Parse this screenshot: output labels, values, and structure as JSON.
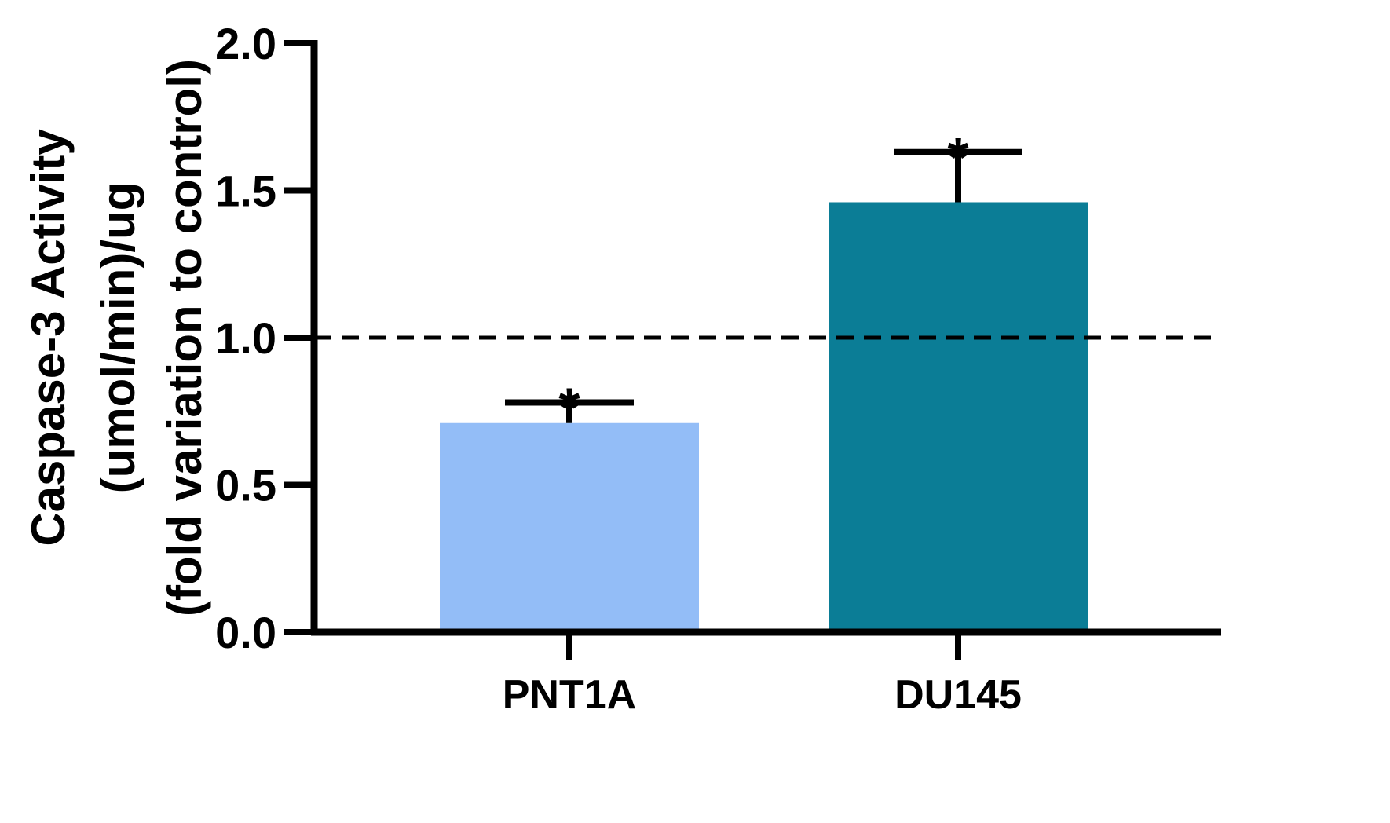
{
  "chart_data": {
    "type": "bar",
    "categories": [
      "PNT1A",
      "DU145"
    ],
    "values": [
      0.71,
      1.46
    ],
    "error_upper": [
      0.78,
      1.63
    ],
    "significance": [
      "*",
      "*"
    ],
    "colors": [
      "#93bdf7",
      "#0b7d96"
    ],
    "ylabel_lines": [
      "Caspase-3 Activity",
      "(umol/min)/ug",
      "(fold variation to control)"
    ],
    "ylim": [
      0,
      2
    ],
    "yticks": [
      0.0,
      0.5,
      1.0,
      1.5,
      2.0
    ],
    "ytick_labels": [
      "0.0",
      "0.5",
      "1.0",
      "1.5",
      "2.0"
    ],
    "reference_line": {
      "value": 1.0,
      "style": "dashed"
    },
    "grid": false,
    "legend": "none"
  }
}
